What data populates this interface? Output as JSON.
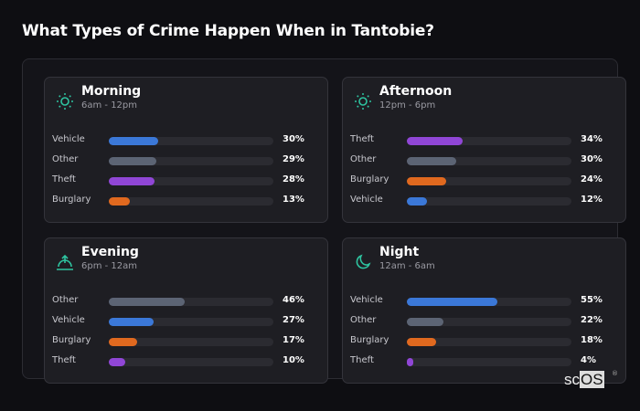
{
  "title": "What Types of Crime Happen When in Tantobie?",
  "colors": {
    "Vehicle": "#3b78d8",
    "Other": "#5c6474",
    "Theft": "#9046d6",
    "Burglary": "#e0691f",
    "icon": "#2ec4a0"
  },
  "chart_data": [
    {
      "type": "bar",
      "title": "Morning",
      "subtitle": "6am - 12pm",
      "icon": "sun-icon",
      "categories": [
        "Vehicle",
        "Other",
        "Theft",
        "Burglary"
      ],
      "values": [
        30,
        29,
        28,
        13
      ],
      "labels": [
        "30%",
        "29%",
        "28%",
        "13%"
      ],
      "xlim": [
        0,
        100
      ]
    },
    {
      "type": "bar",
      "title": "Afternoon",
      "subtitle": "12pm - 6pm",
      "icon": "sun-icon",
      "categories": [
        "Theft",
        "Other",
        "Burglary",
        "Vehicle"
      ],
      "values": [
        34,
        30,
        24,
        12
      ],
      "labels": [
        "34%",
        "30%",
        "24%",
        "12%"
      ],
      "xlim": [
        0,
        100
      ]
    },
    {
      "type": "bar",
      "title": "Evening",
      "subtitle": "6pm - 12am",
      "icon": "sunset-icon",
      "categories": [
        "Other",
        "Vehicle",
        "Burglary",
        "Theft"
      ],
      "values": [
        46,
        27,
        17,
        10
      ],
      "labels": [
        "46%",
        "27%",
        "17%",
        "10%"
      ],
      "xlim": [
        0,
        100
      ]
    },
    {
      "type": "bar",
      "title": "Night",
      "subtitle": "12am - 6am",
      "icon": "moon-icon",
      "categories": [
        "Vehicle",
        "Other",
        "Burglary",
        "Theft"
      ],
      "values": [
        55,
        22,
        18,
        4
      ],
      "labels": [
        "55%",
        "22%",
        "18%",
        "4%"
      ],
      "xlim": [
        0,
        100
      ]
    }
  ],
  "logo": "scOS"
}
